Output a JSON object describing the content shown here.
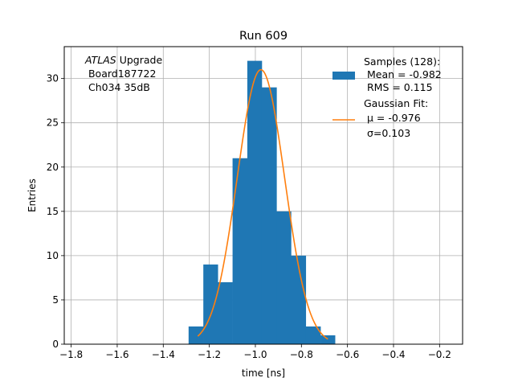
{
  "chart_data": {
    "type": "bar",
    "title": "Run 609",
    "xlabel": "time [ns]",
    "ylabel": "Entries",
    "xlim": [
      -1.83,
      -0.1
    ],
    "ylim": [
      0,
      33.6
    ],
    "xticks": [
      -1.8,
      -1.6,
      -1.4,
      -1.2,
      -1.0,
      -0.8,
      -0.6,
      -0.4,
      -0.2
    ],
    "xtick_labels": [
      "−1.8",
      "−1.6",
      "−1.4",
      "−1.2",
      "−1.0",
      "−0.8",
      "−0.6",
      "−0.4",
      "−0.2"
    ],
    "yticks": [
      0,
      5,
      10,
      15,
      20,
      25,
      30
    ],
    "ytick_labels": [
      "0",
      "5",
      "10",
      "15",
      "20",
      "25",
      "30"
    ],
    "grid": true,
    "histogram": {
      "name": "Samples (128):",
      "color": "#1f77b4",
      "bin_edges": [
        -1.29,
        -1.226,
        -1.163,
        -1.099,
        -1.035,
        -0.972,
        -0.908,
        -0.845,
        -0.781,
        -0.717,
        -0.654
      ],
      "counts": [
        2,
        9,
        7,
        21,
        32,
        29,
        15,
        10,
        2,
        1
      ]
    },
    "fit": {
      "name": "Gaussian Fit:",
      "color": "#ff7f0e",
      "x_range": [
        -1.25,
        -0.685
      ],
      "amplitude": 31.0,
      "mu": -0.976,
      "sigma": 0.103
    },
    "annotation": {
      "line1_italic": "ATLAS",
      "line1_rest": " Upgrade",
      "line2": " Board187722",
      "line3": " Ch034 35dB"
    },
    "legend": {
      "placement": "top-right",
      "samples_lines": [
        "Samples (128):",
        " Mean = -0.982",
        " RMS = 0.115"
      ],
      "fit_lines": [
        "Gaussian Fit:",
        " μ = -0.976",
        " σ=0.103"
      ]
    }
  }
}
